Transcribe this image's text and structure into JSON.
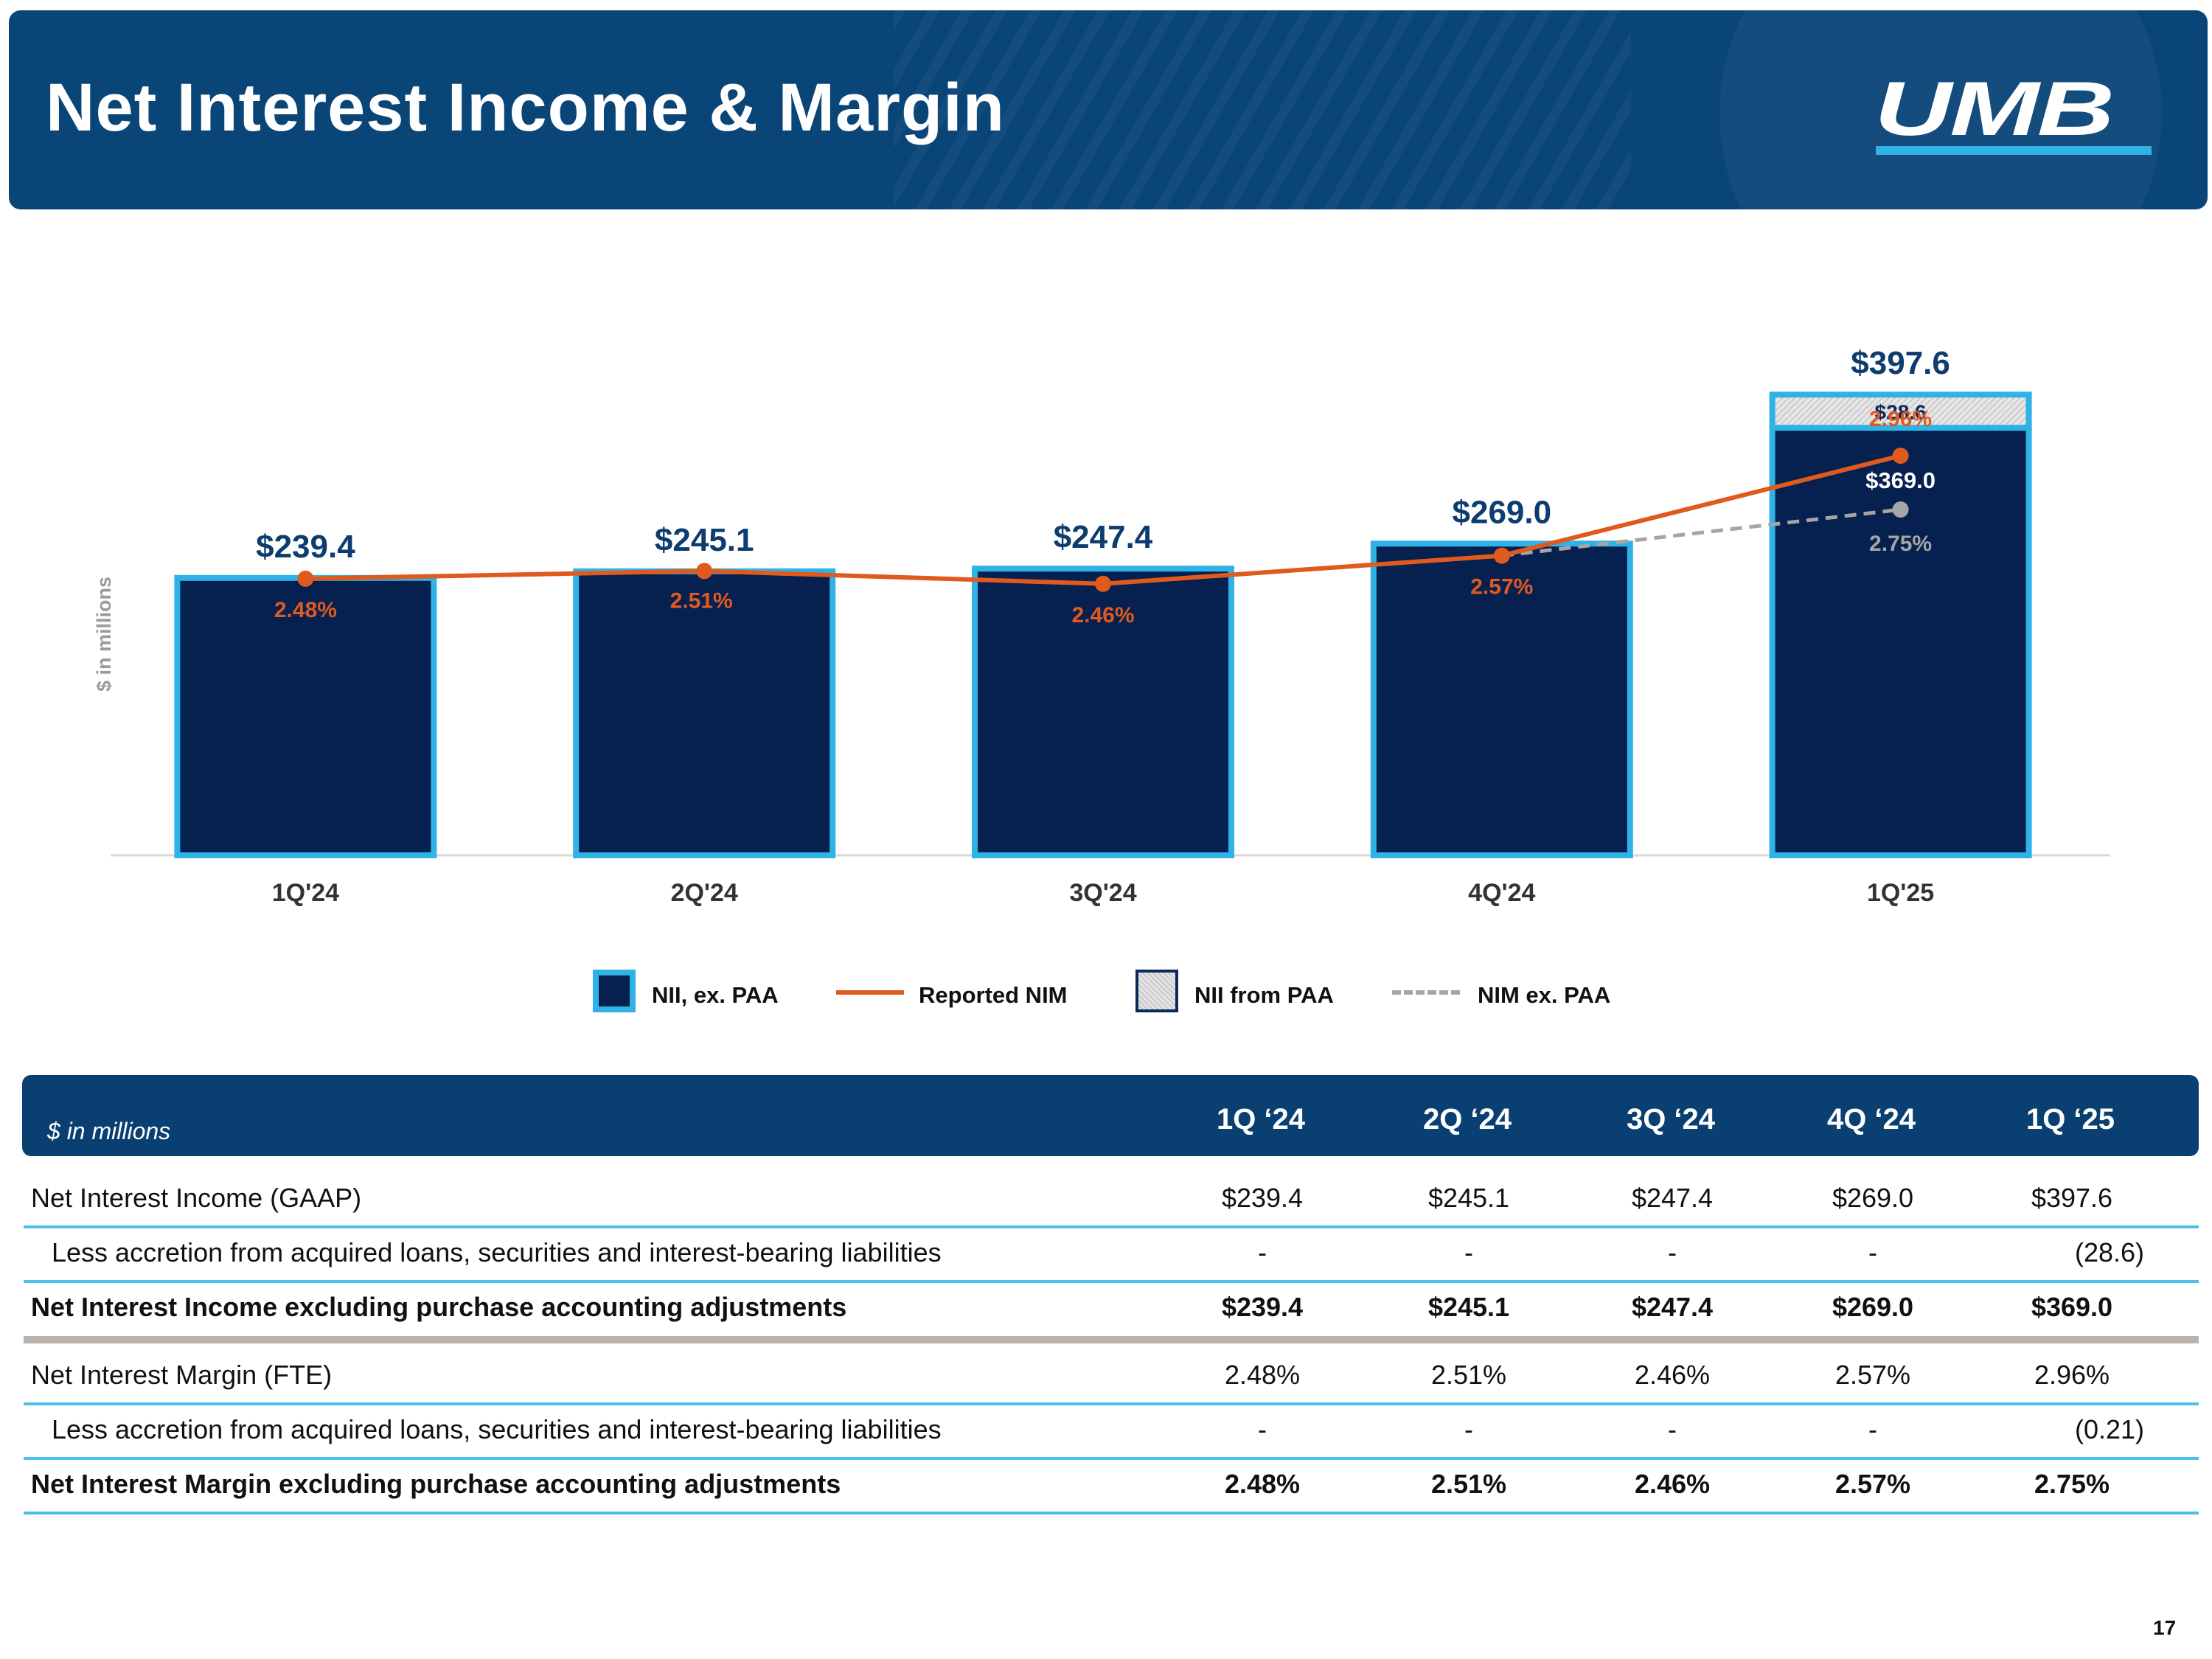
{
  "header": {
    "title": "Net Interest Income & Margin",
    "logo_text": "UMB"
  },
  "chart_data": {
    "type": "bar",
    "ylabel": "$ in millions",
    "categories": [
      "1Q'24",
      "2Q'24",
      "3Q'24",
      "4Q'24",
      "1Q'25"
    ],
    "ylim": [
      0,
      420
    ],
    "series": [
      {
        "name": "NII, ex. PAA",
        "kind": "bar",
        "values": [
          239.4,
          245.1,
          247.4,
          269.0,
          369.0
        ],
        "labels": [
          "",
          "",
          "",
          "",
          "$369.0"
        ]
      },
      {
        "name": "NII from PAA",
        "kind": "stacked-bar",
        "values": [
          0,
          0,
          0,
          0,
          28.6
        ],
        "labels": [
          "",
          "",
          "",
          "",
          "$28.6"
        ]
      },
      {
        "name": "Reported NIM",
        "kind": "line",
        "values": [
          2.48,
          2.51,
          2.46,
          2.57,
          2.96
        ],
        "labels": [
          "2.48%",
          "2.51%",
          "2.46%",
          "2.57%",
          "2.96%"
        ]
      },
      {
        "name": "NIM ex. PAA",
        "kind": "dashed-line",
        "values": [
          null,
          null,
          null,
          2.57,
          2.75
        ],
        "labels": [
          "",
          "",
          "",
          "",
          "2.75%"
        ]
      }
    ],
    "totals": [
      239.4,
      245.1,
      247.4,
      269.0,
      397.6
    ],
    "total_labels": [
      "$239.4",
      "$245.1",
      "$247.4",
      "$269.0",
      "$397.6"
    ],
    "nim_axis_range": [
      1.4,
      3.3
    ],
    "colors": {
      "bar": "#06204f",
      "bar_border": "#2fb2e6",
      "line": "#e05a1e",
      "dashed": "#a5a5a5",
      "total_label": "#0d3c6e"
    }
  },
  "legend": [
    {
      "label": "NII, ex. PAA"
    },
    {
      "label": "Reported NIM"
    },
    {
      "label": "NII from PAA"
    },
    {
      "label": "NIM ex. PAA"
    }
  ],
  "table": {
    "units": "$ in millions",
    "columns": [
      "1Q ‘24",
      "2Q ‘24",
      "3Q ‘24",
      "4Q ‘24",
      "1Q ‘25"
    ],
    "rows": [
      {
        "label": "Net Interest Income (GAAP)",
        "values": [
          "$239.4",
          "$245.1",
          "$247.4",
          "$269.0",
          "$397.6"
        ]
      },
      {
        "label": "Less accretion from acquired loans, securities and interest-bearing liabilities",
        "values": [
          "-",
          "-",
          "-",
          "-",
          "(28.6)"
        ]
      },
      {
        "label": "Net Interest Income excluding purchase accounting adjustments",
        "values": [
          "$239.4",
          "$245.1",
          "$247.4",
          "$269.0",
          "$369.0"
        ]
      },
      {
        "label": "Net Interest Margin (FTE)",
        "values": [
          "2.48%",
          "2.51%",
          "2.46%",
          "2.57%",
          "2.96%"
        ]
      },
      {
        "label": "Less accretion from acquired loans, securities and interest-bearing liabilities",
        "values": [
          "-",
          "-",
          "-",
          "-",
          "(0.21)"
        ]
      },
      {
        "label": "Net Interest Margin excluding purchase accounting adjustments",
        "values": [
          "2.48%",
          "2.51%",
          "2.46%",
          "2.57%",
          "2.75%"
        ]
      }
    ]
  },
  "page_number": "17"
}
